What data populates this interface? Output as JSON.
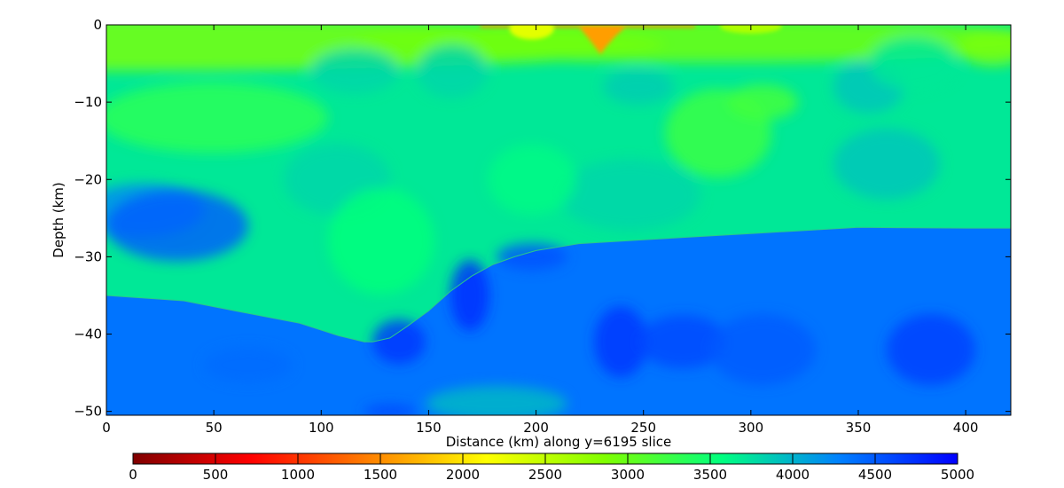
{
  "chart_data": {
    "type": "heatmap",
    "xlabel": "Distance (km) along y=6195 slice",
    "ylabel": "Depth (km)",
    "xlim": [
      0,
      421
    ],
    "ylim": [
      -50.5,
      0
    ],
    "x_ticks": [
      0,
      50,
      100,
      150,
      200,
      250,
      300,
      350,
      400
    ],
    "x_tick_labels": [
      "0",
      "50",
      "100",
      "150",
      "200",
      "250",
      "300",
      "350",
      "400"
    ],
    "y_ticks": [
      0,
      -10,
      -20,
      -30,
      -40,
      -50
    ],
    "y_tick_labels": [
      "0",
      "−10",
      "−20",
      "−30",
      "−40",
      "−50"
    ],
    "colorbar": {
      "range": [
        0,
        5000
      ],
      "ticks": [
        0,
        500,
        1000,
        1500,
        2000,
        2500,
        3000,
        3500,
        4000,
        4500,
        5000
      ],
      "tick_labels": [
        "0",
        "500",
        "1000",
        "1500",
        "2000",
        "2500",
        "3000",
        "3500",
        "4000",
        "4500",
        "5000"
      ],
      "orientation": "horizontal",
      "placement": "bottom",
      "colormap": [
        "#800000",
        "#ff0000",
        "#ff8000",
        "#ffff00",
        "#80ff00",
        "#00ff80",
        "#0080ff",
        "#0000ff"
      ]
    },
    "moho_boundary": {
      "x": [
        0,
        36,
        60,
        90,
        108,
        120,
        124,
        132,
        140,
        150,
        160,
        170,
        180,
        190,
        200,
        220,
        250,
        300,
        350,
        400,
        421
      ],
      "depth": [
        -35.0,
        -35.7,
        -37.0,
        -38.6,
        -40.2,
        -41.0,
        -41.0,
        -40.5,
        -39.0,
        -37.0,
        -34.5,
        -32.5,
        -31.0,
        -30.0,
        -29.2,
        -28.3,
        -27.8,
        -27.0,
        -26.2,
        -26.3,
        -26.3
      ]
    },
    "shallow_anomaly": {
      "x_center": 230,
      "depth_min": -3.8,
      "value": 1600
    },
    "grid": false
  }
}
